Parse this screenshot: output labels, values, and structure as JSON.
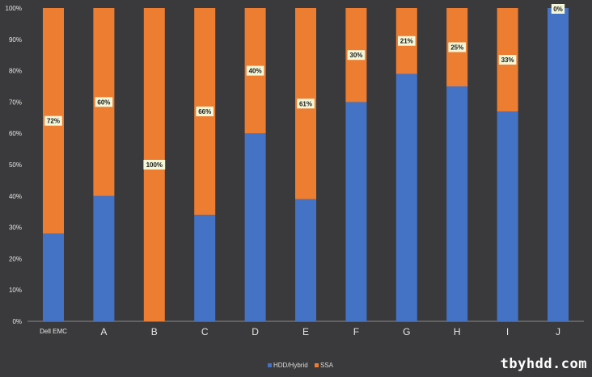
{
  "chart_data": {
    "type": "bar",
    "stacked": true,
    "percent_stacked": true,
    "categories": [
      "Dell EMC",
      "A",
      "B",
      "C",
      "D",
      "E",
      "F",
      "G",
      "H",
      "I",
      "J"
    ],
    "series": [
      {
        "name": "HDD/Hybrid",
        "color": "#4472c4",
        "values": [
          28,
          40,
          0,
          34,
          60,
          39,
          70,
          79,
          75,
          67,
          100
        ]
      },
      {
        "name": "SSA",
        "color": "#ed7d31",
        "values": [
          72,
          60,
          100,
          66,
          40,
          61,
          30,
          21,
          25,
          33,
          0
        ]
      }
    ],
    "data_labels": [
      "72%",
      "60%",
      "100%",
      "66%",
      "40%",
      "61%",
      "30%",
      "21%",
      "25%",
      "33%",
      "0%"
    ],
    "ylim": [
      0,
      100
    ],
    "y_ticks": [
      "0%",
      "10%",
      "20%",
      "30%",
      "40%",
      "50%",
      "60%",
      "70%",
      "80%",
      "90%",
      "100%"
    ],
    "grid": false,
    "legend_position": "bottom",
    "title": "",
    "xlabel": "",
    "ylabel": ""
  },
  "watermark": "tbyhdd.com"
}
